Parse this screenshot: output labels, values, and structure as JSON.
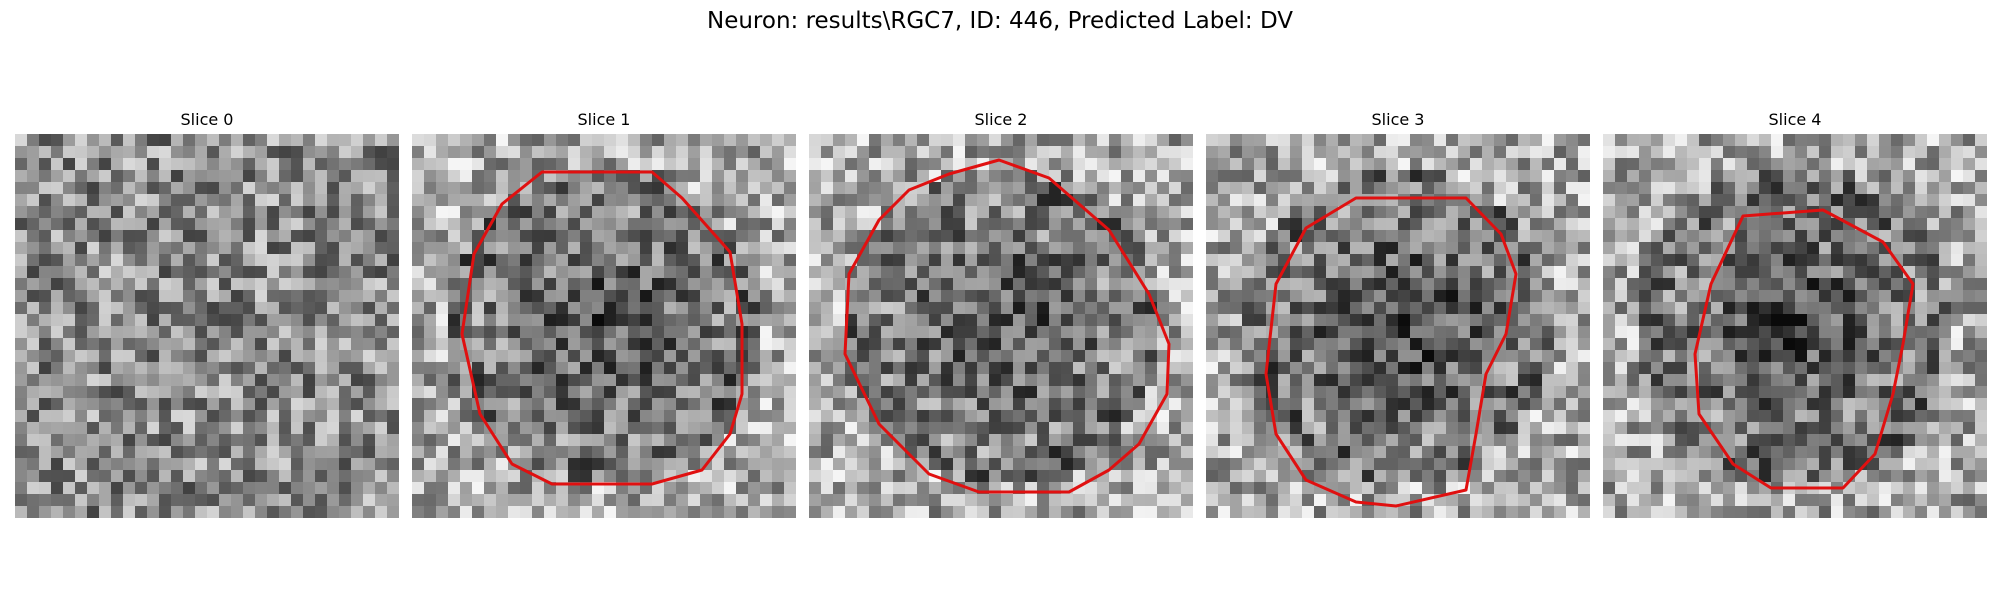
{
  "figure": {
    "title": "Neuron: results\\RGC7, ID: 446, Predicted Label: DV",
    "contour_color": "#e01010",
    "panels": [
      {
        "title": "Slice 0",
        "has_contour": false,
        "seed": 11,
        "center_darkness": 0.0
      },
      {
        "title": "Slice 1",
        "has_contour": true,
        "seed": 23,
        "center_darkness": 0.3
      },
      {
        "title": "Slice 2",
        "has_contour": true,
        "seed": 37,
        "center_darkness": 0.28
      },
      {
        "title": "Slice 3",
        "has_contour": true,
        "seed": 51,
        "center_darkness": 0.38
      },
      {
        "title": "Slice 4",
        "has_contour": true,
        "seed": 67,
        "center_darkness": 0.32
      }
    ]
  }
}
